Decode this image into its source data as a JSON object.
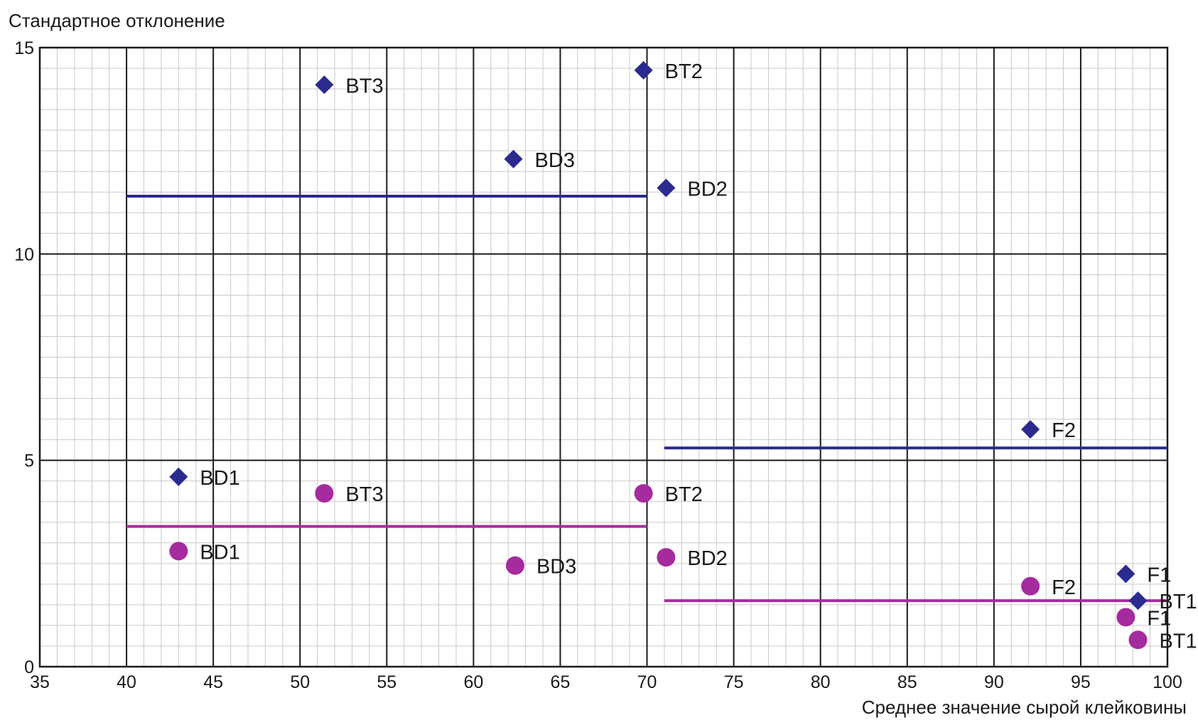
{
  "chart_data": {
    "type": "scatter",
    "title": "",
    "ylabel": "Стандартное отклонение",
    "xlabel": "Среднее значение сырой клейковины",
    "xlim": [
      35,
      100
    ],
    "ylim": [
      0,
      15
    ],
    "x_ticks": [
      "35",
      "40",
      "45",
      "50",
      "55",
      "60",
      "65",
      "70",
      "75",
      "80",
      "85",
      "90",
      "95",
      "100"
    ],
    "y_ticks": [
      "0",
      "5",
      "10",
      "15"
    ],
    "grid": true,
    "series": [
      {
        "marker": "diamond",
        "color": "#2b2a8f",
        "points": [
          {
            "label": "BT3",
            "x": 51.4,
            "y": 14.1
          },
          {
            "label": "BT2",
            "x": 69.8,
            "y": 14.45
          },
          {
            "label": "BD3",
            "x": 62.3,
            "y": 12.3
          },
          {
            "label": "BD2",
            "x": 71.1,
            "y": 11.6
          },
          {
            "label": "F2",
            "x": 92.1,
            "y": 5.75
          },
          {
            "label": "BD1",
            "x": 43.0,
            "y": 4.6
          },
          {
            "label": "F1",
            "x": 97.6,
            "y": 2.25
          },
          {
            "label": "BT1",
            "x": 98.3,
            "y": 1.6
          }
        ]
      },
      {
        "marker": "circle",
        "color": "#a52b9e",
        "points": [
          {
            "label": "BT3",
            "x": 51.4,
            "y": 4.2
          },
          {
            "label": "BT2",
            "x": 69.8,
            "y": 4.2
          },
          {
            "label": "BD1",
            "x": 43.0,
            "y": 2.8
          },
          {
            "label": "BD2",
            "x": 71.1,
            "y": 2.65
          },
          {
            "label": "BD3",
            "x": 62.4,
            "y": 2.45
          },
          {
            "label": "F2",
            "x": 92.1,
            "y": 1.95
          },
          {
            "label": "F1",
            "x": 97.6,
            "y": 1.2
          },
          {
            "label": "BT1",
            "x": 98.3,
            "y": 0.65
          }
        ]
      }
    ],
    "reference_lines": [
      {
        "color": "#2b2a8f",
        "x_start": 40,
        "x_end": 70,
        "y": 11.4
      },
      {
        "color": "#2b2a8f",
        "x_start": 71,
        "x_end": 100,
        "y": 5.3
      },
      {
        "color": "#a52b9e",
        "x_start": 40,
        "x_end": 70,
        "y": 3.4
      },
      {
        "color": "#a52b9e",
        "x_start": 71,
        "x_end": 100,
        "y": 1.6
      }
    ]
  }
}
